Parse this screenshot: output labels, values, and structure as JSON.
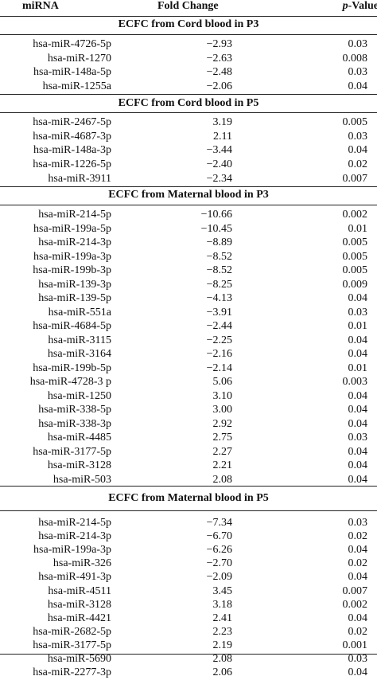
{
  "header": {
    "mirna": "miRNA",
    "fold_change": "Fold Change",
    "p_prefix": "p",
    "p_suffix": "-Value"
  },
  "sections": [
    {
      "title": "ECFC from Cord blood in P3",
      "rows": [
        {
          "mirna": "hsa-miR-4726-5p",
          "fc": "−2.93",
          "p": "0.03"
        },
        {
          "mirna": "hsa-miR-1270",
          "fc": "−2.63",
          "p": "0.008"
        },
        {
          "mirna": "hsa-miR-148a-5p",
          "fc": "−2.48",
          "p": "0.03"
        },
        {
          "mirna": "hsa-miR-1255a",
          "fc": "−2.06",
          "p": "0.04"
        }
      ]
    },
    {
      "title": "ECFC from Cord blood in P5",
      "rows": [
        {
          "mirna": "hsa-miR-2467-5p",
          "fc": "3.19",
          "p": "0.005"
        },
        {
          "mirna": "hsa-miR-4687-3p",
          "fc": "2.11",
          "p": "0.03"
        },
        {
          "mirna": "hsa-miR-148a-3p",
          "fc": "−3.44",
          "p": "0.04"
        },
        {
          "mirna": "hsa-miR-1226-5p",
          "fc": "−2.40",
          "p": "0.02"
        },
        {
          "mirna": "hsa-miR-3911",
          "fc": "−2.34",
          "p": "0.007"
        }
      ]
    },
    {
      "title": "ECFC from Maternal blood in P3",
      "rows": [
        {
          "mirna": "hsa-miR-214-5p",
          "fc": "−10.66",
          "p": "0.002"
        },
        {
          "mirna": "hsa-miR-199a-5p",
          "fc": "−10.45",
          "p": "0.01"
        },
        {
          "mirna": "hsa-miR-214-3p",
          "fc": "−8.89",
          "p": "0.005"
        },
        {
          "mirna": "hsa-miR-199a-3p",
          "fc": "−8.52",
          "p": "0.005"
        },
        {
          "mirna": "hsa-miR-199b-3p",
          "fc": "−8.52",
          "p": "0.005"
        },
        {
          "mirna": "hsa-miR-139-3p",
          "fc": "−8.25",
          "p": "0.009"
        },
        {
          "mirna": "hsa-miR-139-5p",
          "fc": "−4.13",
          "p": "0.04"
        },
        {
          "mirna": "hsa-miR-551a",
          "fc": "−3.91",
          "p": "0.03"
        },
        {
          "mirna": "hsa-miR-4684-5p",
          "fc": "−2.44",
          "p": "0.01"
        },
        {
          "mirna": "hsa-miR-3115",
          "fc": "−2.25",
          "p": "0.04"
        },
        {
          "mirna": "hsa-miR-3164",
          "fc": "−2.16",
          "p": "0.04"
        },
        {
          "mirna": "hsa-miR-199b-5p",
          "fc": "−2.14",
          "p": "0.01"
        },
        {
          "mirna": "hsa-miR-4728-3 p",
          "fc": "5.06",
          "p": "0.003"
        },
        {
          "mirna": "hsa-miR-1250",
          "fc": "3.10",
          "p": "0.04"
        },
        {
          "mirna": "hsa-miR-338-5p",
          "fc": "3.00",
          "p": "0.04"
        },
        {
          "mirna": "hsa-miR-338-3p",
          "fc": "2.92",
          "p": "0.04"
        },
        {
          "mirna": "hsa-miR-4485",
          "fc": "2.75",
          "p": "0.03"
        },
        {
          "mirna": "hsa-miR-3177-5p",
          "fc": "2.27",
          "p": "0.04"
        },
        {
          "mirna": "hsa-miR-3128",
          "fc": "2.21",
          "p": "0.04"
        },
        {
          "mirna": "hsa-miR-503",
          "fc": "2.08",
          "p": "0.04"
        }
      ]
    },
    {
      "title": "ECFC from Maternal blood in P5",
      "rows": [
        {
          "mirna": "hsa-miR-214-5p",
          "fc": "−7.34",
          "p": "0.03"
        },
        {
          "mirna": "hsa-miR-214-3p",
          "fc": "−6.70",
          "p": "0.02"
        },
        {
          "mirna": "hsa-miR-199a-3p",
          "fc": "−6.26",
          "p": "0.04"
        },
        {
          "mirna": "hsa-miR-326",
          "fc": "−2.70",
          "p": "0.02"
        },
        {
          "mirna": "hsa-miR-491-3p",
          "fc": "−2.09",
          "p": "0.04"
        },
        {
          "mirna": "hsa-miR-4511",
          "fc": "3.45",
          "p": "0.007"
        },
        {
          "mirna": "hsa-miR-3128",
          "fc": "3.18",
          "p": "0.002"
        },
        {
          "mirna": "hsa-miR-4421",
          "fc": "2.41",
          "p": "0.04"
        },
        {
          "mirna": "hsa-miR-2682-5p",
          "fc": "2.23",
          "p": "0.02"
        },
        {
          "mirna": "hsa-miR-3177-5p",
          "fc": "2.19",
          "p": "0.001"
        },
        {
          "mirna": "hsa-miR-5690",
          "fc": "2.08",
          "p": "0.03"
        },
        {
          "mirna": "hsa-miR-2277-3p",
          "fc": "2.06",
          "p": "0.04"
        }
      ]
    }
  ]
}
